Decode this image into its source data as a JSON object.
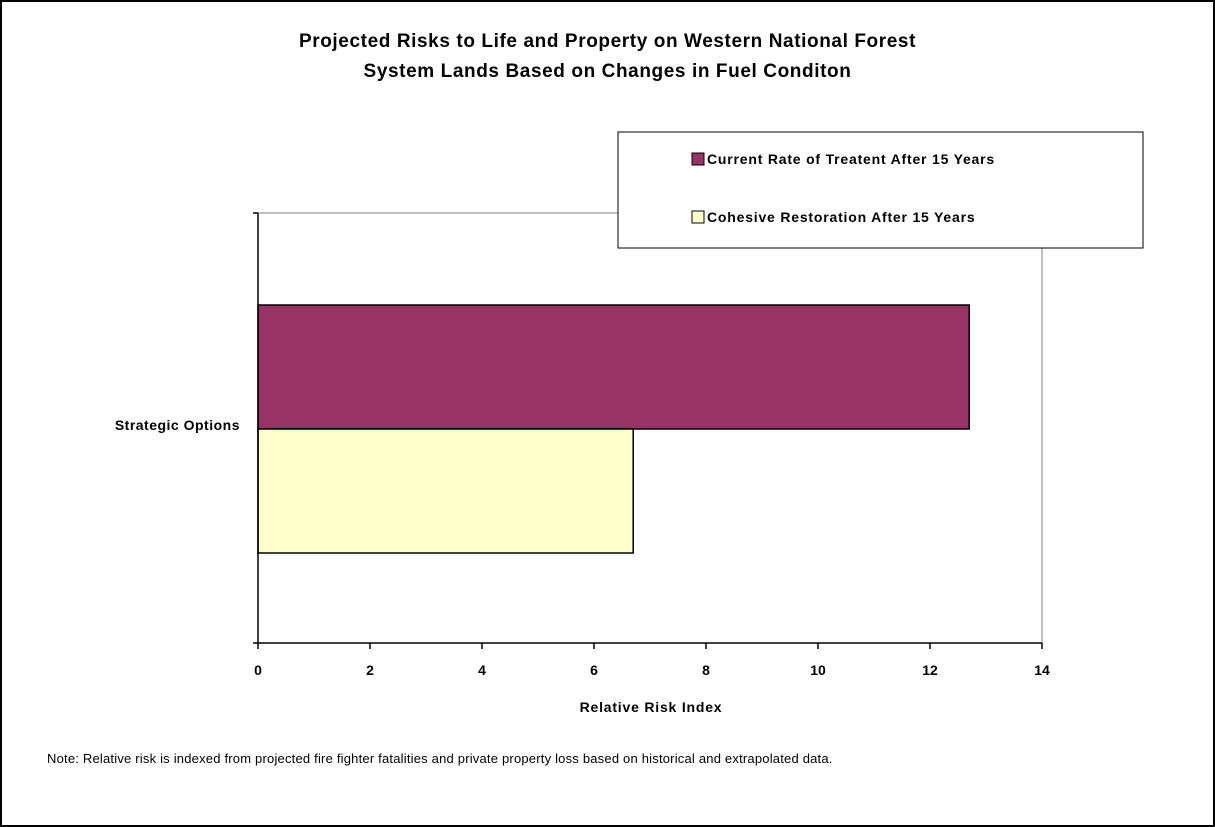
{
  "chart_data": {
    "type": "bar",
    "orientation": "horizontal",
    "title_lines": [
      "Projected Risks to Life and Property on Western National Forest",
      "System Lands Based on Changes in Fuel Conditon"
    ],
    "categories": [
      "Strategic Options"
    ],
    "series": [
      {
        "name": "Current Rate of Treatent After 15 Years",
        "values": [
          12.7
        ],
        "color": "#993366"
      },
      {
        "name": "Cohesive Restoration After 15 Years",
        "values": [
          6.7
        ],
        "color": "#FFFFCC"
      }
    ],
    "xlabel": "Relative Risk Index",
    "ylabel": "",
    "xlim": [
      0,
      14
    ],
    "xticks": [
      "0",
      "2",
      "4",
      "6",
      "8",
      "10",
      "12",
      "14"
    ],
    "grid": false,
    "legend_position": "top-right"
  },
  "note": "Note: Relative risk is indexed from projected fire fighter fatalities and private property loss based on historical and extrapolated data."
}
